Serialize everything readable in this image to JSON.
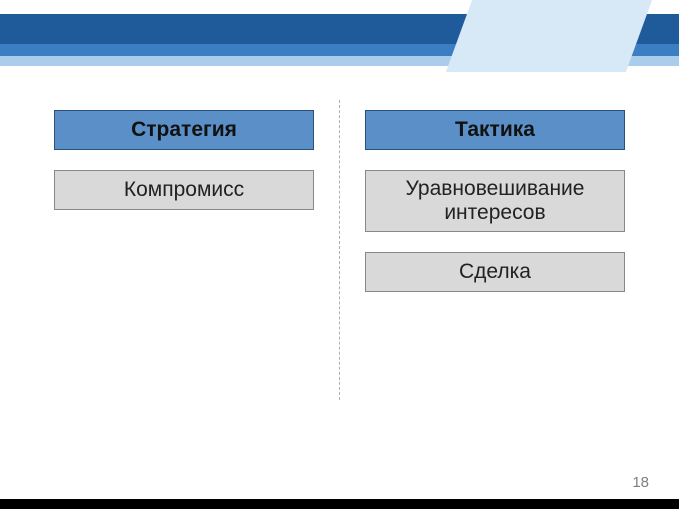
{
  "theme": {
    "band_dark": "#1f5a9a",
    "band_mid": "#3b7fc2",
    "band_light": "#a9cdea",
    "band_slash": "#d7e8f6",
    "header_box_bg": "#5a8fc7",
    "item_box_bg": "#d9d9d9",
    "divider_color": "#b0b0b0",
    "page_color": "#ffffff",
    "font_family": "Arial",
    "header_fontsize": 21,
    "item_fontsize": 21
  },
  "left": {
    "header": "Стратегия",
    "items": [
      "Компромисс"
    ]
  },
  "right": {
    "header": "Тактика",
    "items": [
      "Уравновешивание интересов",
      "Сделка"
    ]
  },
  "page_number": "18"
}
